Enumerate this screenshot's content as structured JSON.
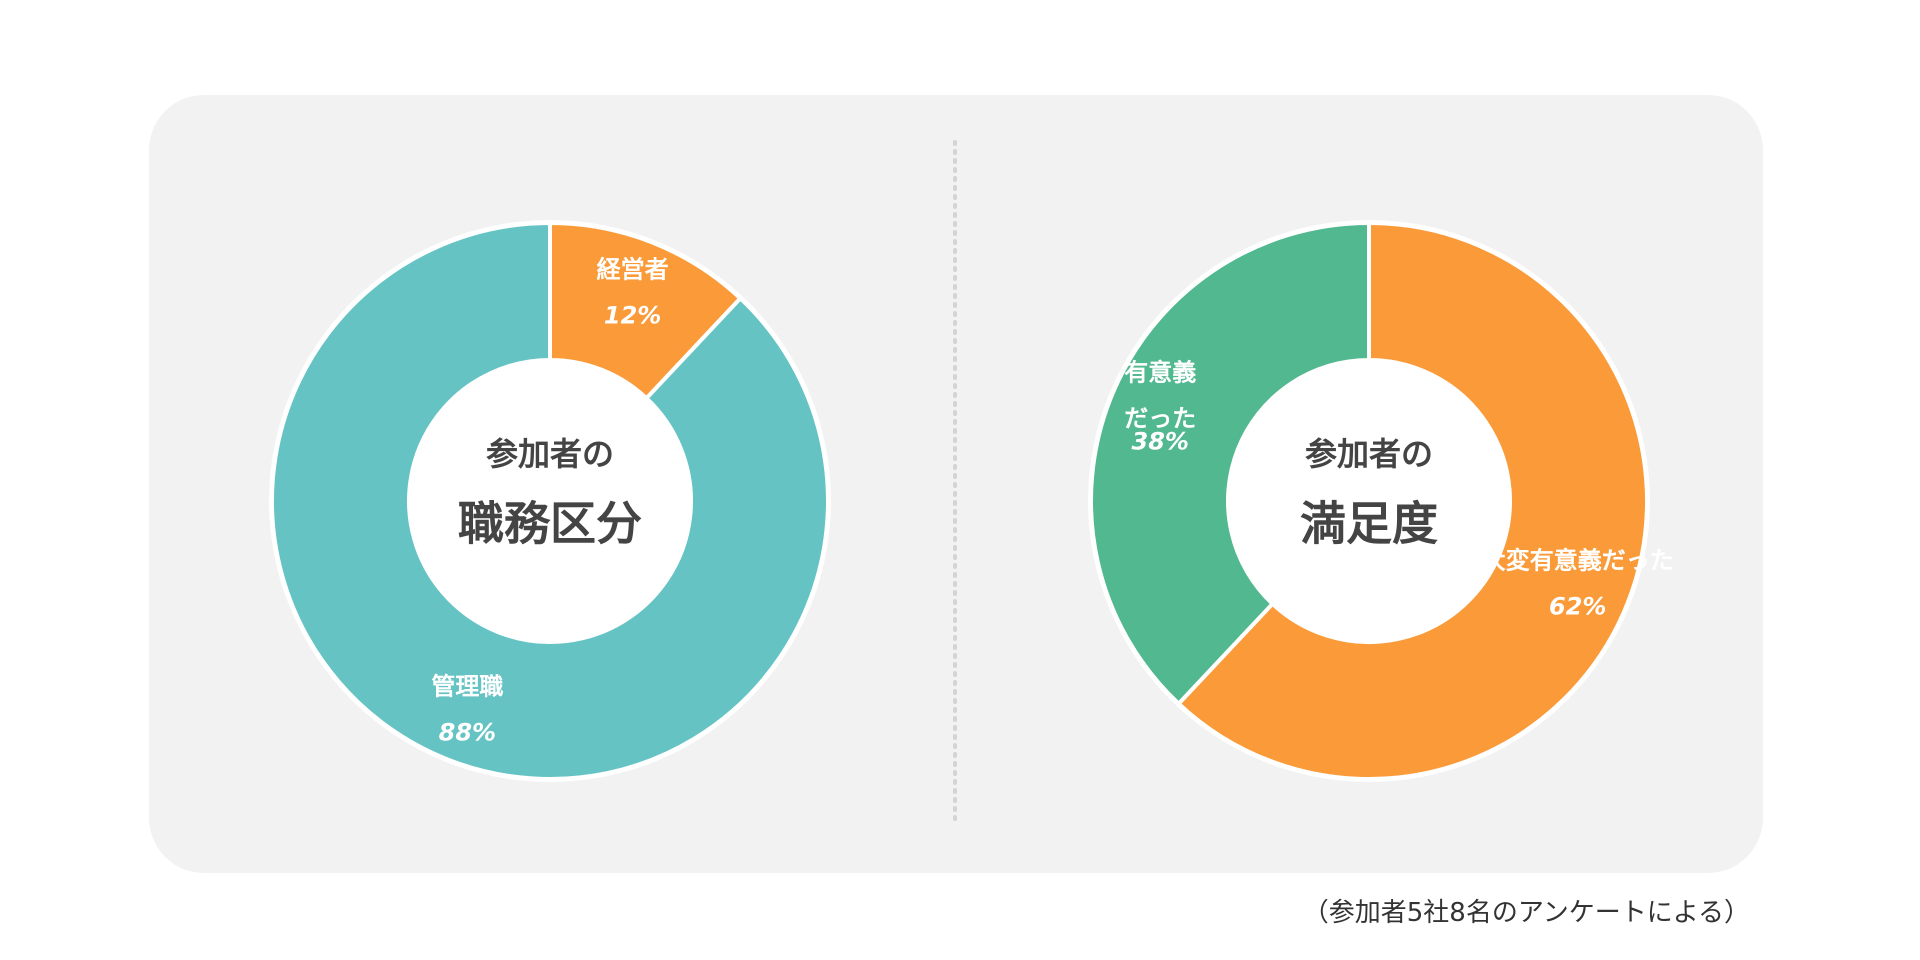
{
  "chart_data": [
    {
      "type": "donut",
      "title": "参加者の",
      "subtitle": "職務区分",
      "categories": [
        "経営者",
        "管理職"
      ],
      "values": [
        12,
        88
      ],
      "value_labels": [
        "12%",
        "88%"
      ],
      "colors": [
        "#fa9a38",
        "#66c3c4"
      ]
    },
    {
      "type": "donut",
      "title": "参加者の",
      "subtitle": "満足度",
      "categories": [
        "大変有意義だった",
        "有意義\nだった"
      ],
      "values": [
        62,
        38
      ],
      "value_labels": [
        "62%",
        "38%"
      ],
      "colors": [
        "#fa9a38",
        "#52b88f"
      ]
    }
  ],
  "note": "（参加者5社8名のアンケートによる）"
}
